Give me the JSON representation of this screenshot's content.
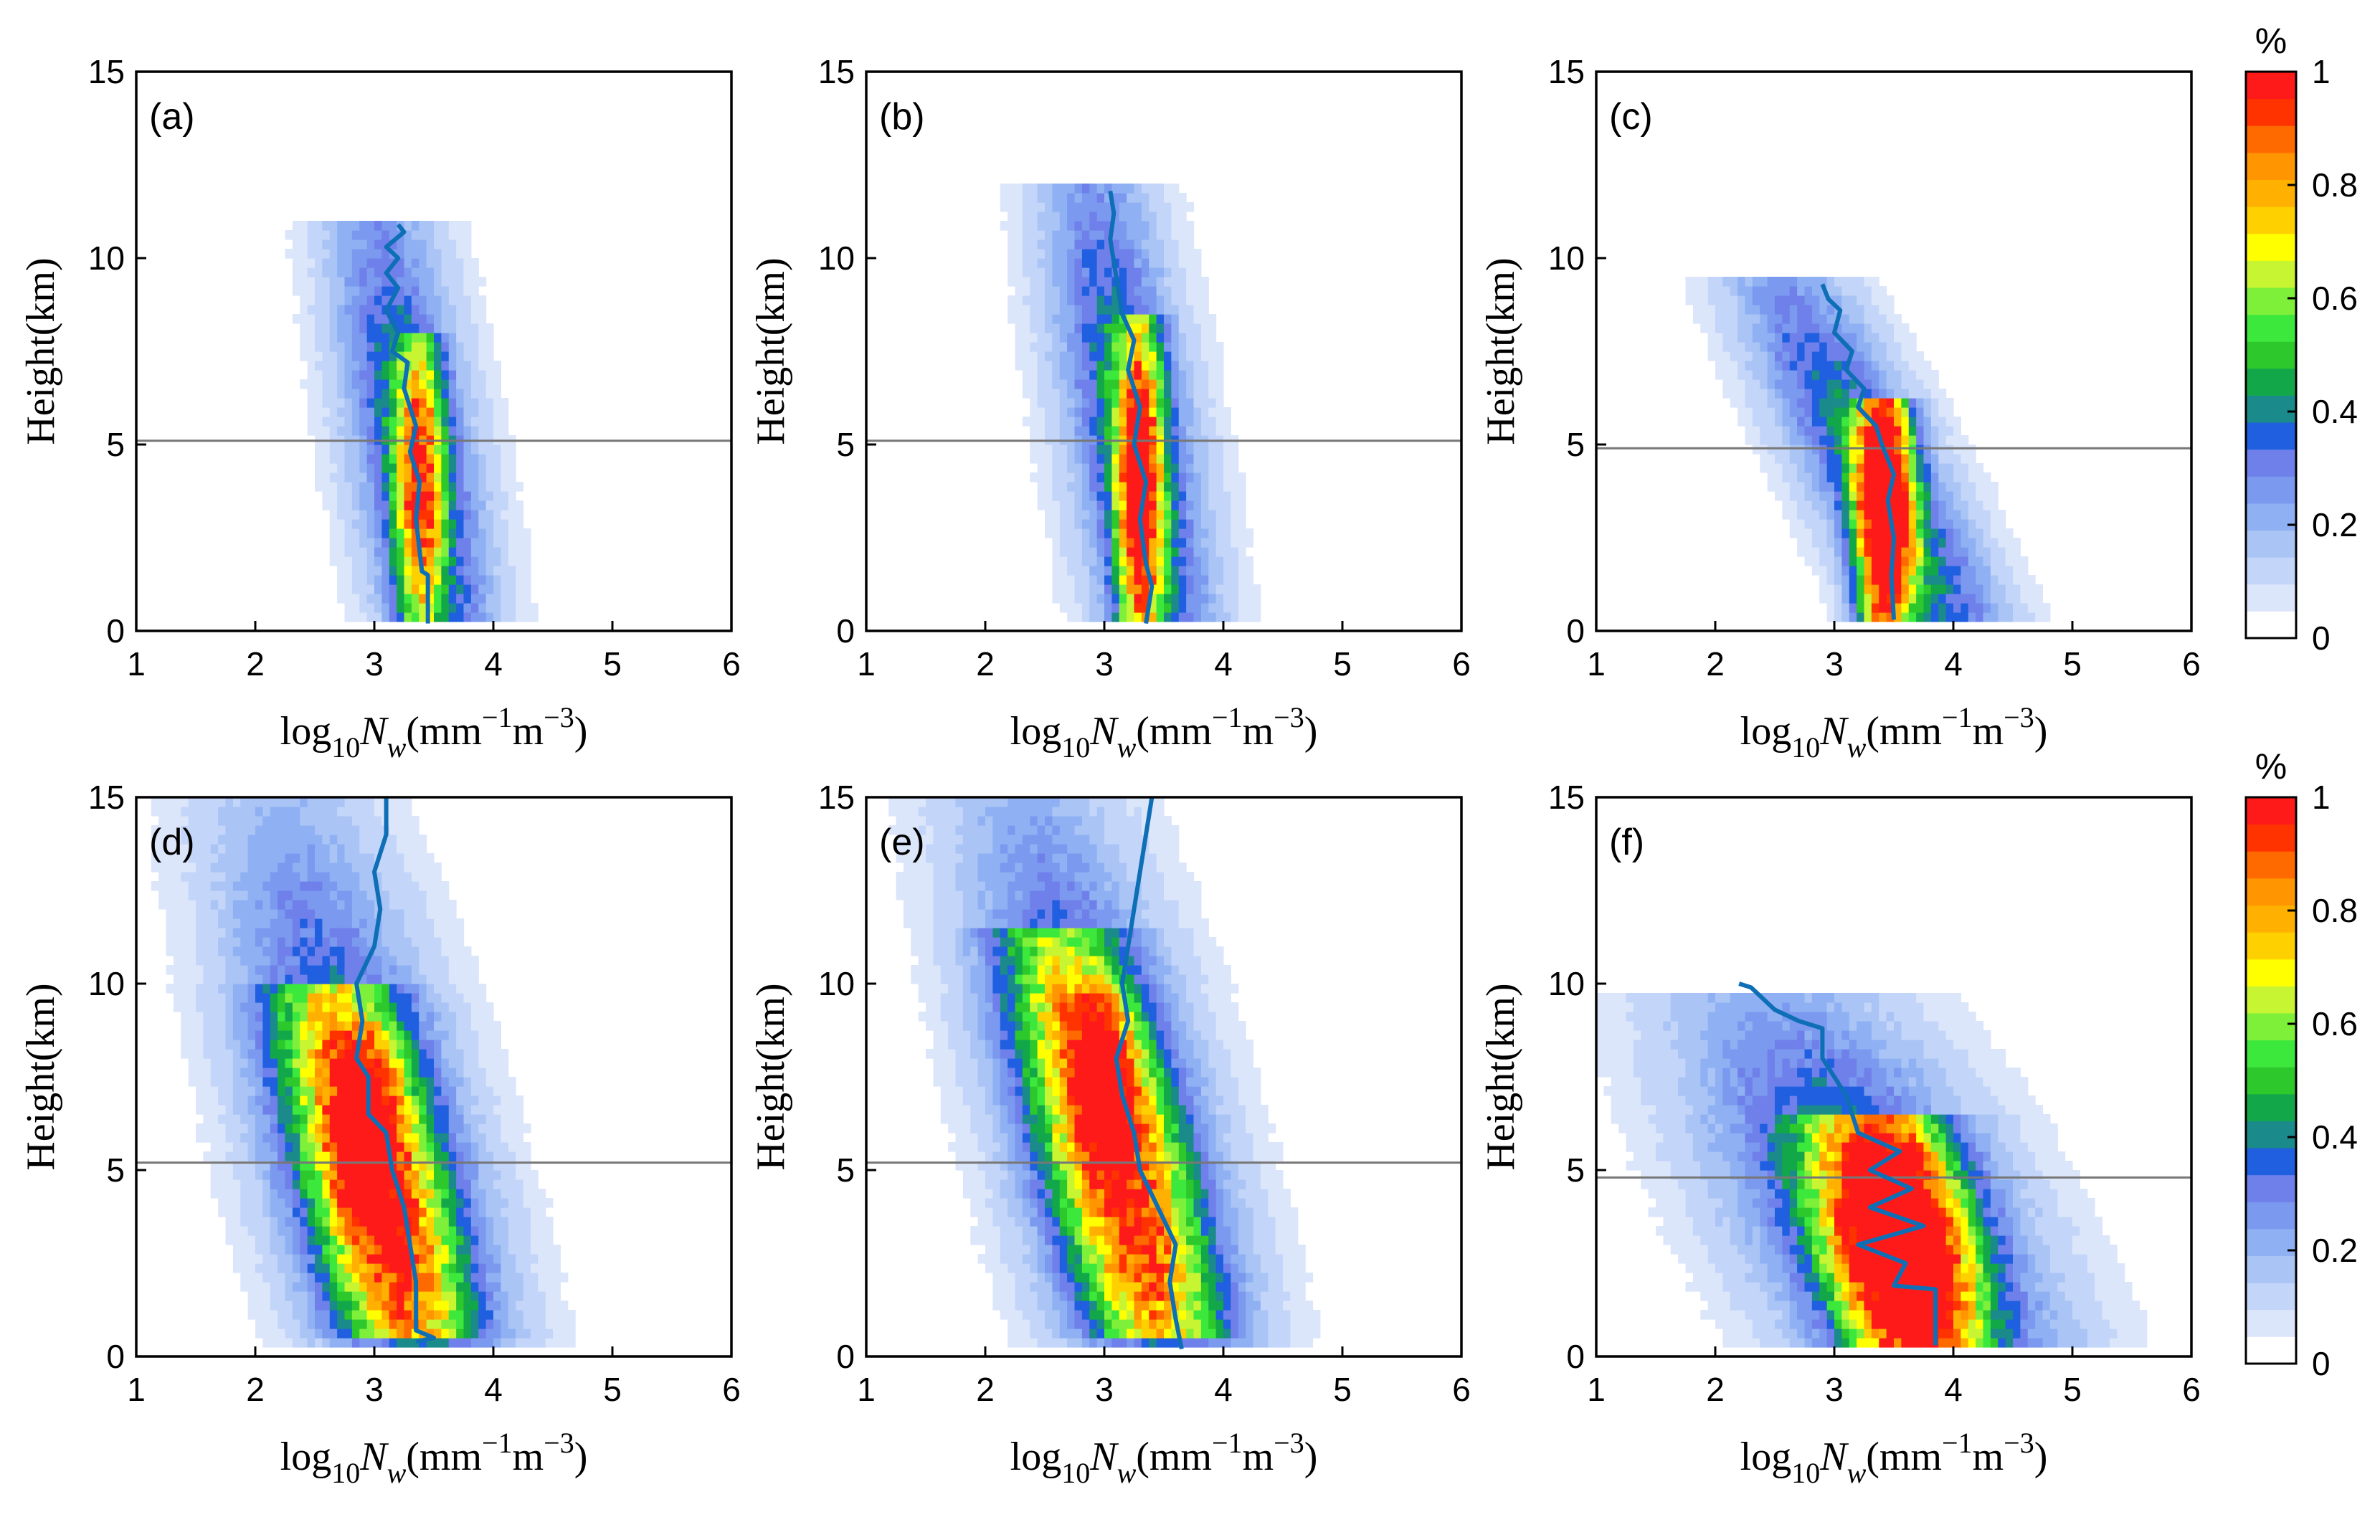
{
  "chart_data": {
    "type": "heatmap",
    "shared": {
      "xlim": [
        1,
        6
      ],
      "ylim": [
        0,
        15
      ],
      "x_ticks": [
        "1",
        "2",
        "3",
        "4",
        "5",
        "6"
      ],
      "y_ticks": [
        "0",
        "5",
        "10",
        "15"
      ],
      "y_tick_values": [
        0,
        5,
        10,
        15
      ],
      "ylabel": "Height(km)",
      "xlabel_prefix": "log",
      "xlabel_sub": "10",
      "xlabel_var": "N",
      "xlabel_var_sub": "w",
      "xlabel_unit1": "(mm",
      "xlabel_exp1": "−1",
      "xlabel_unit2": "m",
      "xlabel_exp2": "−3",
      "xlabel_close": ")"
    },
    "colorbar": {
      "title": "%",
      "range": [
        0,
        1
      ],
      "tick_labels": [
        "0",
        "0.2",
        "0.4",
        "0.6",
        "0.8",
        "1"
      ],
      "tick_values": [
        0,
        0.2,
        0.4,
        0.6,
        0.8,
        1
      ],
      "colors": [
        "#ffffff",
        "#dce6fb",
        "#c3d5f8",
        "#a9c4f5",
        "#8fb1f3",
        "#7a99ef",
        "#6f80ea",
        "#1f5fe0",
        "#1a8a8a",
        "#12a84a",
        "#2cc82c",
        "#3de83d",
        "#7ff03a",
        "#c8f532",
        "#ffff00",
        "#ffd000",
        "#ffb000",
        "#ff9500",
        "#ff6a00",
        "#ff3300",
        "#ff1a1a"
      ]
    },
    "panels": [
      {
        "label": "(a)",
        "melting_layer_km": 5.1,
        "blobs": [
          {
            "x": 3.35,
            "y": 4.5,
            "sx": 0.34,
            "sy": 5.8,
            "amp": 0.42,
            "skew": -0.05,
            "ymin": 0.2,
            "ymax": 11
          },
          {
            "x": 3.38,
            "y": 3.8,
            "sx": 0.13,
            "sy": 3.2,
            "amp": 0.62,
            "skew": 0.0,
            "ymin": 0.3,
            "ymax": 8
          }
        ],
        "median": [
          [
            3.45,
            0.2
          ],
          [
            3.45,
            1.5
          ],
          [
            3.4,
            1.6
          ],
          [
            3.35,
            3
          ],
          [
            3.38,
            4
          ],
          [
            3.3,
            4.8
          ],
          [
            3.35,
            5.5
          ],
          [
            3.25,
            6.5
          ],
          [
            3.28,
            7.2
          ],
          [
            3.15,
            7.5
          ],
          [
            3.2,
            8
          ],
          [
            3.1,
            8.6
          ],
          [
            3.2,
            9.2
          ],
          [
            3.1,
            9.6
          ],
          [
            3.2,
            10
          ],
          [
            3.1,
            10.3
          ],
          [
            3.25,
            10.7
          ],
          [
            3.2,
            10.9
          ]
        ]
      },
      {
        "label": "(b)",
        "melting_layer_km": 5.1,
        "blobs": [
          {
            "x": 3.25,
            "y": 4.8,
            "sx": 0.35,
            "sy": 6.3,
            "amp": 0.42,
            "skew": -0.05,
            "ymin": 0.2,
            "ymax": 12
          },
          {
            "x": 3.3,
            "y": 3.8,
            "sx": 0.13,
            "sy": 3.5,
            "amp": 0.78,
            "skew": 0.0,
            "ymin": 0.3,
            "ymax": 8.5
          }
        ],
        "median": [
          [
            3.35,
            0.2
          ],
          [
            3.4,
            1.2
          ],
          [
            3.35,
            1.8
          ],
          [
            3.3,
            3
          ],
          [
            3.35,
            4
          ],
          [
            3.25,
            5
          ],
          [
            3.3,
            6
          ],
          [
            3.2,
            7
          ],
          [
            3.25,
            7.8
          ],
          [
            3.15,
            8.5
          ],
          [
            3.1,
            9.5
          ],
          [
            3.05,
            10.5
          ],
          [
            3.08,
            11.2
          ],
          [
            3.05,
            11.8
          ]
        ]
      },
      {
        "label": "(c)",
        "melting_layer_km": 4.9,
        "blobs": [
          {
            "x": 3.4,
            "y": 3.8,
            "sx": 0.38,
            "sy": 5.0,
            "amp": 0.42,
            "skew": -0.15,
            "ymin": 0.2,
            "ymax": 9.5
          },
          {
            "x": 3.42,
            "y": 3.0,
            "sx": 0.16,
            "sy": 3.2,
            "amp": 1.05,
            "skew": 0.0,
            "ymin": 0.3,
            "ymax": 6.2
          }
        ],
        "median": [
          [
            3.5,
            0.3
          ],
          [
            3.48,
            1.5
          ],
          [
            3.5,
            2.5
          ],
          [
            3.45,
            3.5
          ],
          [
            3.5,
            4.2
          ],
          [
            3.4,
            5
          ],
          [
            3.35,
            5.5
          ],
          [
            3.2,
            6
          ],
          [
            3.25,
            6.5
          ],
          [
            3.1,
            7
          ],
          [
            3.15,
            7.5
          ],
          [
            3.0,
            8
          ],
          [
            3.05,
            8.6
          ],
          [
            2.95,
            8.9
          ],
          [
            2.9,
            9.3
          ]
        ]
      },
      {
        "label": "(d)",
        "melting_layer_km": 5.2,
        "blobs": [
          {
            "x": 3.0,
            "y": 5.0,
            "sx": 0.55,
            "sy": 6.5,
            "amp": 0.45,
            "skew": -0.08,
            "ymin": 0.2,
            "ymax": 15
          },
          {
            "x": 3.0,
            "y": 4.8,
            "sx": 0.38,
            "sy": 4.8,
            "amp": 0.62,
            "skew": -0.07,
            "ymin": 0.4,
            "ymax": 10
          },
          {
            "x": 2.95,
            "y": 6.2,
            "sx": 0.18,
            "sy": 1.6,
            "amp": 0.3,
            "skew": 0.0,
            "ymin": 3,
            "ymax": 9
          }
        ],
        "median": [
          [
            3.35,
            0.4
          ],
          [
            3.5,
            0.5
          ],
          [
            3.35,
            0.7
          ],
          [
            3.35,
            2
          ],
          [
            3.3,
            3
          ],
          [
            3.25,
            4
          ],
          [
            3.15,
            5
          ],
          [
            3.1,
            6
          ],
          [
            2.95,
            6.5
          ],
          [
            2.95,
            7.5
          ],
          [
            2.85,
            8
          ],
          [
            2.9,
            9
          ],
          [
            2.85,
            10
          ],
          [
            3.0,
            11
          ],
          [
            3.05,
            12
          ],
          [
            3.0,
            13
          ],
          [
            3.1,
            14
          ],
          [
            3.1,
            15
          ]
        ]
      },
      {
        "label": "(e)",
        "melting_layer_km": 5.2,
        "blobs": [
          {
            "x": 3.1,
            "y": 5.5,
            "sx": 0.55,
            "sy": 7.0,
            "amp": 0.42,
            "skew": -0.08,
            "ymin": 0.2,
            "ymax": 15
          },
          {
            "x": 3.1,
            "y": 5.2,
            "sx": 0.38,
            "sy": 5.5,
            "amp": 0.6,
            "skew": -0.08,
            "ymin": 0.5,
            "ymax": 11.5
          },
          {
            "x": 3.0,
            "y": 7.8,
            "sx": 0.18,
            "sy": 1.8,
            "amp": 0.3,
            "skew": 0.0,
            "ymin": 5,
            "ymax": 10
          }
        ],
        "median": [
          [
            3.65,
            0.2
          ],
          [
            3.6,
            1
          ],
          [
            3.55,
            2
          ],
          [
            3.6,
            3
          ],
          [
            3.45,
            4
          ],
          [
            3.3,
            5
          ],
          [
            3.25,
            6
          ],
          [
            3.15,
            7
          ],
          [
            3.1,
            8
          ],
          [
            3.2,
            9
          ],
          [
            3.15,
            10
          ],
          [
            3.2,
            11
          ],
          [
            3.25,
            12
          ],
          [
            3.3,
            13
          ],
          [
            3.35,
            14
          ],
          [
            3.4,
            15
          ]
        ]
      },
      {
        "label": "(f)",
        "melting_layer_km": 4.8,
        "blobs": [
          {
            "x": 3.4,
            "y": 3.5,
            "sx": 0.75,
            "sy": 4.5,
            "amp": 0.45,
            "skew": -0.15,
            "ymin": 0.2,
            "ymax": 9.8
          },
          {
            "x": 3.55,
            "y": 3.0,
            "sx": 0.38,
            "sy": 3.0,
            "amp": 1.05,
            "skew": -0.05,
            "ymin": 0.3,
            "ymax": 6.5
          }
        ],
        "median": [
          [
            3.85,
            0.3
          ],
          [
            3.85,
            1.8
          ],
          [
            3.5,
            1.9
          ],
          [
            3.6,
            2.5
          ],
          [
            3.2,
            3
          ],
          [
            3.75,
            3.5
          ],
          [
            3.3,
            4
          ],
          [
            3.65,
            4.5
          ],
          [
            3.3,
            5
          ],
          [
            3.55,
            5.5
          ],
          [
            3.2,
            6
          ],
          [
            3.1,
            7
          ],
          [
            3.0,
            7.5
          ],
          [
            2.9,
            8
          ],
          [
            2.9,
            8.8
          ],
          [
            2.7,
            9
          ],
          [
            2.5,
            9.3
          ],
          [
            2.4,
            9.6
          ],
          [
            2.3,
            9.9
          ],
          [
            2.2,
            10
          ]
        ]
      }
    ]
  }
}
